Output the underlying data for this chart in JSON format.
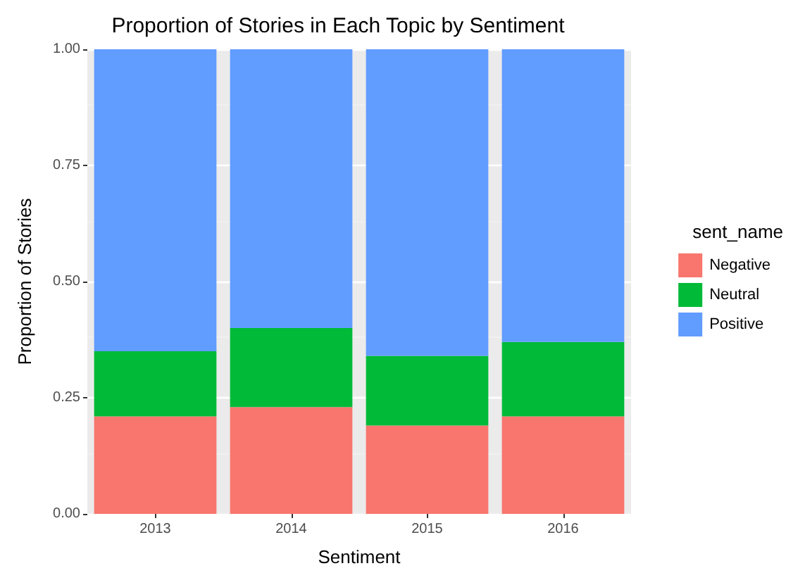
{
  "chart_data": {
    "type": "bar",
    "title": "Proportion of Stories in Each Topic by Sentiment",
    "xlabel": "Sentiment",
    "ylabel": "Proportion of Stories",
    "legend_title": "sent_name",
    "categories": [
      "2013",
      "2014",
      "2015",
      "2016"
    ],
    "series": [
      {
        "name": "Negative",
        "color": "#f8766d",
        "values": [
          0.21,
          0.23,
          0.19,
          0.21
        ]
      },
      {
        "name": "Neutral",
        "color": "#00ba38",
        "values": [
          0.14,
          0.17,
          0.15,
          0.16
        ]
      },
      {
        "name": "Positive",
        "color": "#619cff",
        "values": [
          0.65,
          0.6,
          0.66,
          0.63
        ]
      }
    ],
    "stacked": true,
    "ylim": [
      0,
      1
    ],
    "yticks": [
      {
        "value": 0,
        "label": "0.00"
      },
      {
        "value": 0.25,
        "label": "0.25"
      },
      {
        "value": 0.5,
        "label": "0.50"
      },
      {
        "value": 0.75,
        "label": "0.75"
      },
      {
        "value": 1,
        "label": "1.00"
      }
    ],
    "grid": true,
    "legend": "right"
  }
}
